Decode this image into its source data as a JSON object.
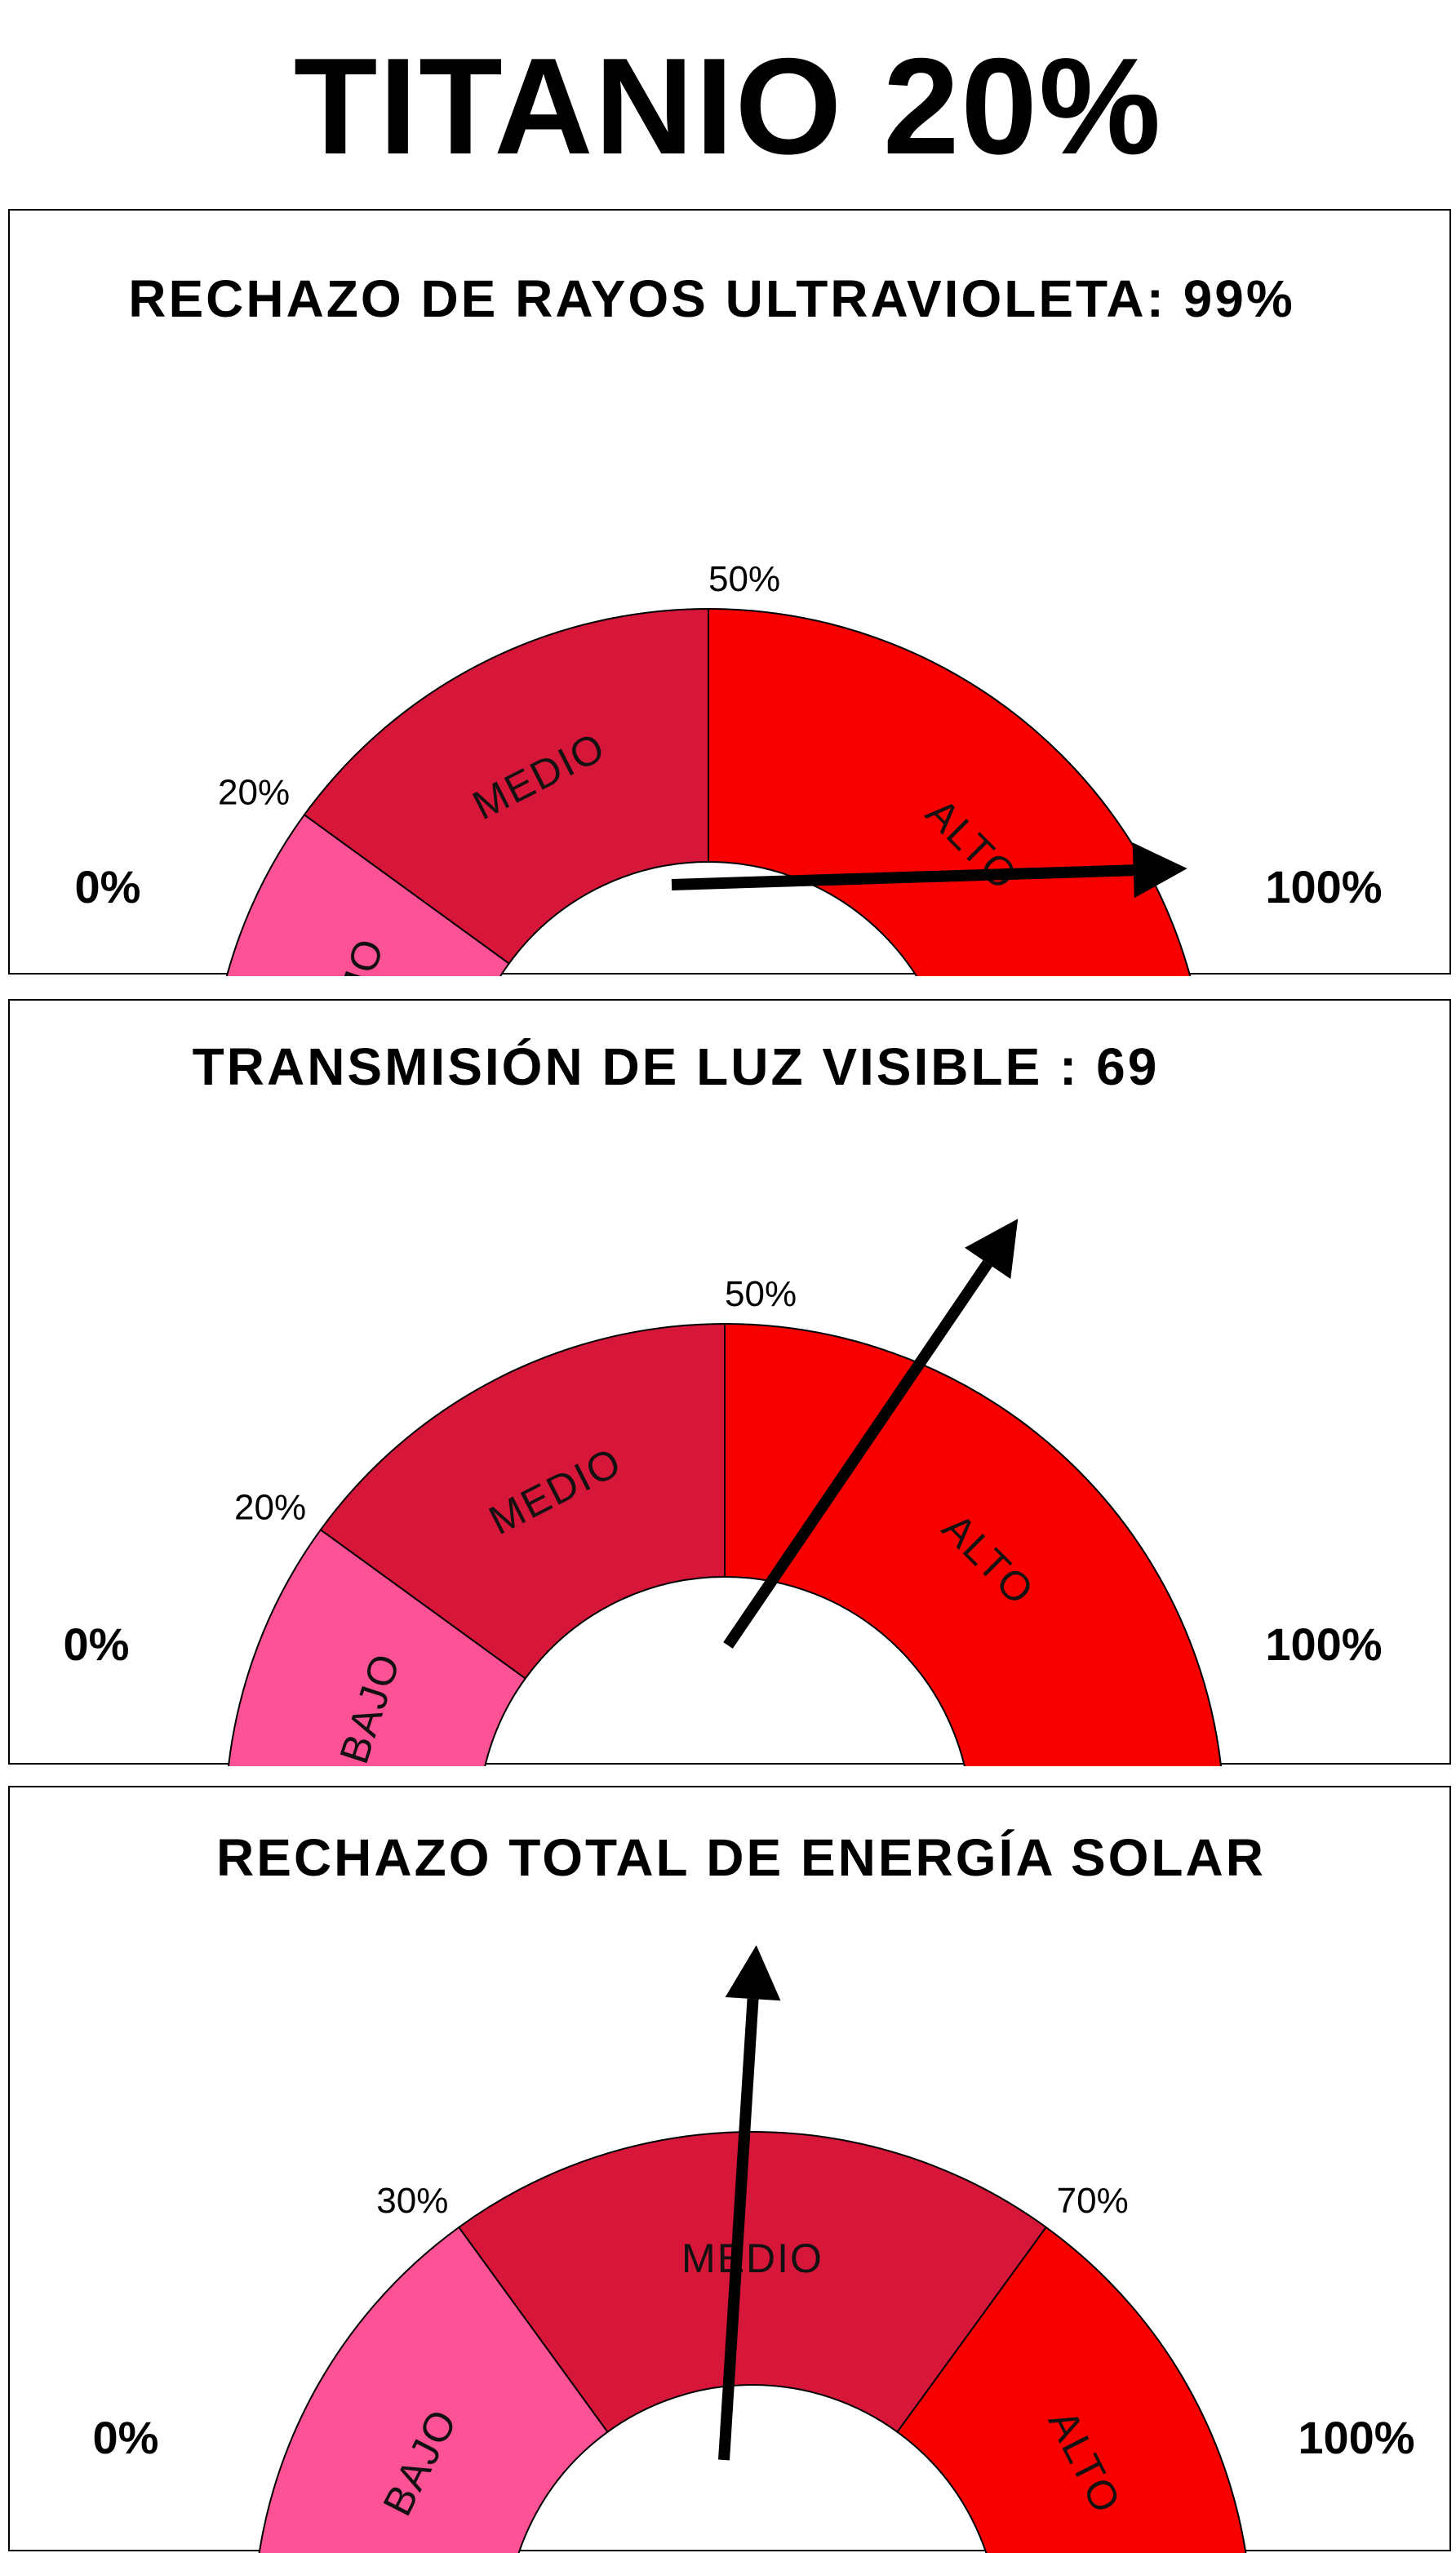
{
  "page_title": "TITANIO 20%",
  "chart_data": [
    {
      "type": "gauge",
      "title": "RECHAZO DE RAYOS ULTRAVIOLETA: 99%",
      "value": 99,
      "min_label": "0%",
      "max_label": "100%",
      "range": [
        0,
        100
      ],
      "thresholds": [
        {
          "label": "20%",
          "value": 20
        },
        {
          "label": "50%",
          "value": 50
        }
      ],
      "segments": [
        {
          "name": "BAJO",
          "from": 0,
          "to": 20,
          "color": "#fe5296"
        },
        {
          "name": "MEDIO",
          "from": 20,
          "to": 50,
          "color": "#d6173a"
        },
        {
          "name": "ALTO",
          "from": 50,
          "to": 100,
          "color": "#f80000"
        }
      ]
    },
    {
      "type": "gauge",
      "title": "TRANSMISIÓN DE LUZ VISIBLE : 69",
      "value": 69,
      "min_label": "0%",
      "max_label": "100%",
      "range": [
        0,
        100
      ],
      "thresholds": [
        {
          "label": "20%",
          "value": 20
        },
        {
          "label": "50%",
          "value": 50
        }
      ],
      "segments": [
        {
          "name": "BAJO",
          "from": 0,
          "to": 20,
          "color": "#fe5296"
        },
        {
          "name": "MEDIO",
          "from": 20,
          "to": 50,
          "color": "#d6173a"
        },
        {
          "name": "ALTO",
          "from": 50,
          "to": 100,
          "color": "#f80000"
        }
      ]
    },
    {
      "type": "gauge",
      "title": "RECHAZO TOTAL DE ENERGÍA SOLAR",
      "value": 52,
      "min_label": "0%",
      "max_label": "100%",
      "range": [
        0,
        100
      ],
      "thresholds": [
        {
          "label": "30%",
          "value": 30
        },
        {
          "label": "70%",
          "value": 70
        }
      ],
      "segments": [
        {
          "name": "BAJO",
          "from": 0,
          "to": 30,
          "color": "#fe5296"
        },
        {
          "name": "MEDIO",
          "from": 30,
          "to": 70,
          "color": "#d6173a"
        },
        {
          "name": "ALTO",
          "from": 70,
          "to": 100,
          "color": "#f80000"
        }
      ]
    }
  ]
}
